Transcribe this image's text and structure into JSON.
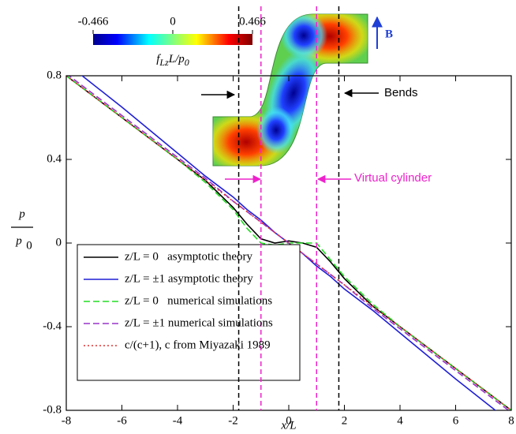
{
  "chart_data": {
    "type": "line",
    "xlabel": "x/L",
    "ylabel": {
      "numerator": "p",
      "denominator": "p",
      "denominator_subscript": "0"
    },
    "x": [
      -8,
      -6,
      -4,
      -3,
      -2,
      -1.5,
      -1,
      -0.5,
      0,
      0.5,
      1,
      1.5,
      2,
      3,
      4,
      6,
      8
    ],
    "xlim": [
      -8,
      8
    ],
    "xticks": [
      -8,
      -6,
      -4,
      -2,
      0,
      2,
      4,
      6,
      8
    ],
    "ylim": [
      -0.8,
      0.8
    ],
    "yticks": [
      0.8,
      0.4,
      0,
      -0.4,
      -0.8
    ],
    "series": [
      {
        "name": "z/L = 0   asymptotic theory",
        "color": "#000000",
        "dash": "solid",
        "values": [
          0.8,
          0.6,
          0.4,
          0.3,
          0.17,
          0.09,
          0.02,
          0.0,
          0.01,
          0.0,
          -0.02,
          -0.09,
          -0.17,
          -0.3,
          -0.4,
          -0.6,
          -0.8
        ]
      },
      {
        "name": "z/L = ±1 asymptotic theory",
        "color": "#1f1fd6",
        "dash": "solid",
        "values": [
          0.86,
          0.65,
          0.43,
          0.32,
          0.22,
          0.16,
          0.11,
          0.05,
          0.0,
          -0.05,
          -0.11,
          -0.16,
          -0.22,
          -0.32,
          -0.43,
          -0.65,
          -0.86
        ]
      },
      {
        "name": "z/L = 0   numerical simulations",
        "color": "#22dd22",
        "dash": "dashed",
        "values": [
          0.8,
          0.6,
          0.4,
          0.29,
          0.16,
          0.07,
          0.0,
          -0.01,
          0.0,
          0.0,
          0.0,
          -0.08,
          -0.16,
          -0.29,
          -0.4,
          -0.6,
          -0.8
        ]
      },
      {
        "name": "z/L = ±1 numerical simulations",
        "color": "#9933cc",
        "dash": "dashed",
        "values": [
          0.81,
          0.61,
          0.41,
          0.31,
          0.2,
          0.15,
          0.1,
          0.05,
          0.0,
          -0.05,
          -0.1,
          -0.15,
          -0.2,
          -0.31,
          -0.41,
          -0.61,
          -0.81
        ]
      },
      {
        "name": "c/(c+1), c from Miyazaki 1989",
        "color": "#e03030",
        "dash": "dotted",
        "values": [
          0.8,
          0.6,
          0.4,
          0.3,
          0.2,
          0.15,
          0.1,
          0.05,
          0.0,
          -0.05,
          -0.1,
          -0.15,
          -0.2,
          -0.3,
          -0.4,
          -0.6,
          -0.8
        ]
      }
    ],
    "vlines": [
      {
        "x": -1.8,
        "color": "#000000"
      },
      {
        "x": 1.8,
        "color": "#000000"
      },
      {
        "x": -1,
        "color": "#ee22cc"
      },
      {
        "x": 1,
        "color": "#ee22cc"
      }
    ],
    "annotations": {
      "bends": "Bends",
      "virtual_cylinder": "Virtual cylinder",
      "field": "B"
    },
    "colorbar": {
      "ticks": [
        {
          "value": -0.466,
          "label": "-0.466"
        },
        0,
        0.466
      ],
      "lim": [
        -0.466,
        0.466
      ],
      "label": [
        {
          "text": "f",
          "sub": false
        },
        {
          "text": "Lz",
          "sub": true
        },
        {
          "text": "L/p",
          "sub": false
        },
        {
          "text": "0",
          "sub": true
        }
      ]
    }
  }
}
